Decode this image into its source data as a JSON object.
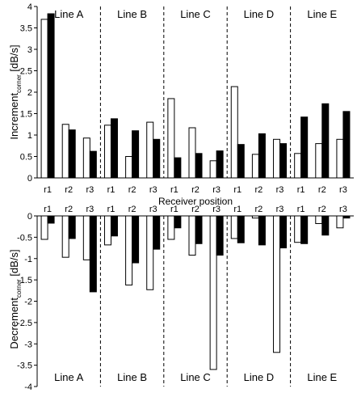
{
  "chart_data": [
    {
      "type": "bar",
      "panel": "top",
      "ylabel_main": "Increment",
      "ylabel_sub": "corner",
      "ylabel_unit": "[dB/s]",
      "xlabel": "Receiver position",
      "ylim": [
        0,
        4
      ],
      "yticks": [
        "0",
        "0.5",
        "1",
        "1.5",
        "2",
        "2.5",
        "3",
        "3.5",
        "4"
      ],
      "ytick_values": [
        0,
        0.5,
        1,
        1.5,
        2,
        2.5,
        3,
        3.5,
        4
      ],
      "groups": [
        "Line A",
        "Line B",
        "Line C",
        "Line D",
        "Line E"
      ],
      "categories": [
        "r1",
        "r2",
        "r3"
      ],
      "series": [
        {
          "color": "#ffffff",
          "values": [
            [
              3.7,
              1.25,
              0.93
            ],
            [
              1.23,
              0.5,
              1.3
            ],
            [
              1.85,
              1.17,
              0.4
            ],
            [
              2.13,
              0.55,
              0.9
            ],
            [
              0.57,
              0.8,
              0.9
            ]
          ]
        },
        {
          "color": "#000000",
          "values": [
            [
              3.83,
              1.12,
              0.62
            ],
            [
              1.38,
              1.1,
              0.9
            ],
            [
              0.47,
              0.57,
              0.63
            ],
            [
              0.78,
              1.03,
              0.8
            ],
            [
              1.42,
              1.73,
              1.55
            ]
          ]
        }
      ]
    },
    {
      "type": "bar",
      "panel": "bottom",
      "ylabel_main": "Decrement",
      "ylabel_sub": "corner",
      "ylabel_unit": "[dB/s]",
      "ylim": [
        -4,
        0
      ],
      "yticks": [
        "0",
        "-0.5",
        "-1",
        "-1.5",
        "-2",
        "-2.5",
        "-3",
        "-3.5",
        "-4"
      ],
      "ytick_values": [
        0,
        -0.5,
        -1,
        -1.5,
        -2,
        -2.5,
        -3,
        -3.5,
        -4
      ],
      "groups": [
        "Line A",
        "Line B",
        "Line C",
        "Line D",
        "Line E"
      ],
      "categories": [
        "r1",
        "r2",
        "r3"
      ],
      "series": [
        {
          "color": "#ffffff",
          "values": [
            [
              -0.55,
              -0.97,
              -1.03
            ],
            [
              -0.68,
              -1.62,
              -1.73
            ],
            [
              -0.55,
              -0.92,
              -3.6
            ],
            [
              -0.53,
              -0.05,
              -3.2
            ],
            [
              -0.62,
              -0.18,
              -0.28
            ]
          ]
        },
        {
          "color": "#000000",
          "values": [
            [
              -0.17,
              -0.53,
              -1.78
            ],
            [
              -0.47,
              -1.1,
              -0.78
            ],
            [
              -0.28,
              -0.65,
              -0.92
            ],
            [
              -0.63,
              -0.68,
              -0.75
            ],
            [
              -0.65,
              -0.45,
              -0.05
            ]
          ]
        }
      ]
    }
  ]
}
